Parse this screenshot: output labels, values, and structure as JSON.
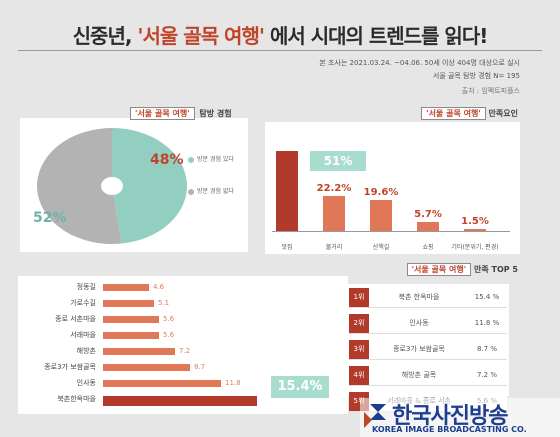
{
  "title": {
    "prefix": "신중년, ",
    "highlight": "'서울 골목 여행'",
    "suffix": " 에서 시대의 트렌드를 읽다!"
  },
  "meta": {
    "line1": "본 조사는 2021.03.24. ~04.06. 50세 이상 404명 대상으로 실시",
    "line2": "서울 골목 탐방 경험 N= 195",
    "source": "출처 : 임팩트피플스"
  },
  "experience": {
    "tag_highlight": "'서울 골목 여행'",
    "tag_rest": " 탐방 경험",
    "legend": [
      {
        "label": "방문 경험 있다",
        "color": "#93cfc0"
      },
      {
        "label": "방문 경험 없다",
        "color": "#b3b3b3"
      }
    ],
    "yes_pct": "48%",
    "no_pct": "52%",
    "colors": {
      "yes": "#93cfc0",
      "no": "#b3b3b3",
      "yes_text": "#c0442a",
      "no_text": "#6bb4a4"
    }
  },
  "chart_data": [
    {
      "type": "pie",
      "title": "'서울 골목 여행' 탐방 경험",
      "categories": [
        "방문 경험 있다",
        "방문 경험 없다"
      ],
      "values": [
        48,
        52
      ]
    },
    {
      "type": "bar",
      "title": "'서울 골목 여행' 만족요인",
      "categories": [
        "맛집",
        "볼거리",
        "산책길",
        "쇼핑",
        "기타(분위기, 편경)"
      ],
      "values": [
        51,
        22.2,
        19.6,
        5.7,
        1.5
      ],
      "labels": [
        "51%",
        "22.2%",
        "19.6%",
        "5.7%",
        "1.5%"
      ],
      "colors": [
        "#b23a2a",
        "#e07858",
        "#e07858",
        "#e07858",
        "#e07858"
      ],
      "ylim": [
        0,
        55
      ]
    },
    {
      "type": "bar",
      "orientation": "horizontal",
      "title": "'서울 골목 여행' 만족 TOP 5",
      "categories": [
        "정동길",
        "가로수길",
        "종로 서촌마을",
        "서래마을",
        "해방촌",
        "종로3가 보쌈골목",
        "인사동",
        "북촌한옥마을"
      ],
      "values": [
        4.6,
        5.1,
        5.6,
        5.6,
        7.2,
        8.7,
        11.8,
        15.4
      ],
      "labels": [
        "4.6",
        "5.1",
        "5.6",
        "5.6",
        "7.2",
        "8.7",
        "11.8",
        "15.4%"
      ],
      "colors": [
        "#e07858",
        "#e07858",
        "#e07858",
        "#e07858",
        "#e07858",
        "#e07858",
        "#e07858",
        "#b23a2a"
      ],
      "xlim": [
        0,
        16
      ]
    }
  ],
  "factors": {
    "tag_highlight": "'서울 골목 여행'",
    "tag_rest": " 만족요인"
  },
  "top5": {
    "tag_highlight": "'서울 골목 여행'",
    "tag_rest": " 만족 TOP 5",
    "ranks": [
      {
        "rank": "1위",
        "name": "북촌 한옥마을",
        "pct": "15.4 %"
      },
      {
        "rank": "2위",
        "name": "인사동",
        "pct": "11.8 %"
      },
      {
        "rank": "3위",
        "name": "종로3가 보쌈골목",
        "pct": "8.7 %"
      },
      {
        "rank": "4위",
        "name": "해방촌 골목",
        "pct": "7.2 %"
      },
      {
        "rank": "5위",
        "name": "서래마을 & 종로 서촌",
        "pct": "5.6 %"
      }
    ]
  },
  "watermark": {
    "name": "한국사진방송",
    "english": "KOREA IMAGE BROADCASTING CO."
  }
}
